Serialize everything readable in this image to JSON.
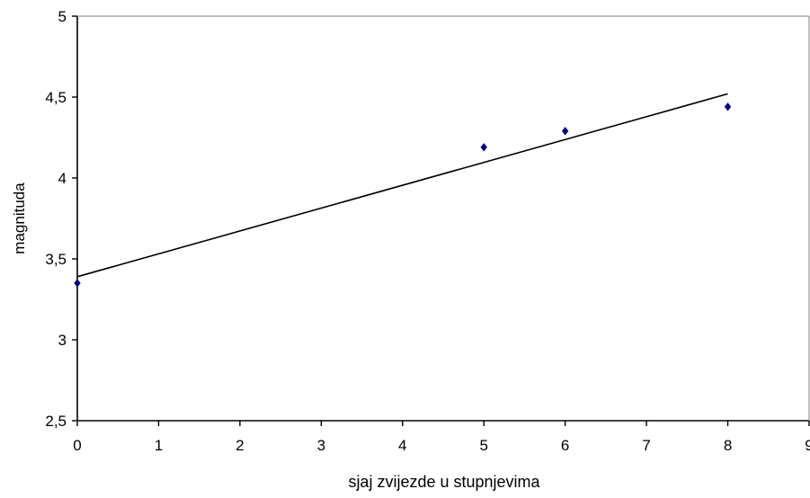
{
  "chart_data": {
    "type": "scatter",
    "title": "",
    "xlabel": "sjaj zvijezde u stupnjevima",
    "ylabel": "magnituda",
    "xlim": [
      0,
      9
    ],
    "ylim": [
      2.5,
      5
    ],
    "x_ticks": [
      0,
      1,
      2,
      3,
      4,
      5,
      6,
      7,
      8,
      9
    ],
    "y_ticks": [
      2.5,
      3,
      3.5,
      4,
      4.5,
      5
    ],
    "x_tick_labels": [
      "0",
      "1",
      "2",
      "3",
      "4",
      "5",
      "6",
      "7",
      "8",
      "9"
    ],
    "y_tick_labels": [
      "2,5",
      "3",
      "3,5",
      "4",
      "4,5",
      "5"
    ],
    "grid": false,
    "legend": "none",
    "points": [
      {
        "x": 0,
        "y": 3.35
      },
      {
        "x": 5,
        "y": 4.19
      },
      {
        "x": 6,
        "y": 4.29
      },
      {
        "x": 8,
        "y": 4.44
      }
    ],
    "trendline": {
      "x": [
        0,
        8
      ],
      "y": [
        3.39,
        4.52
      ]
    },
    "point_color": "#00008B",
    "line_color": "#000000",
    "axis_color": "#000000"
  }
}
